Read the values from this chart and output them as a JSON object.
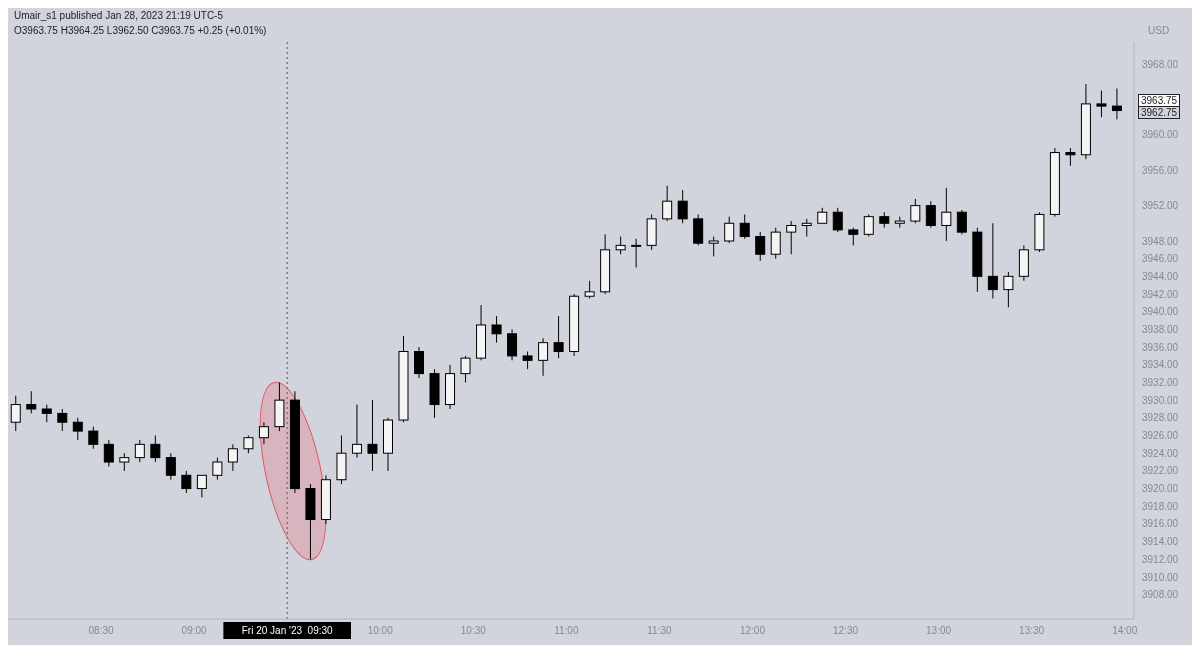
{
  "chart_data": {
    "type": "candlestick",
    "ylabel": "USD",
    "annotations": [
      "Umair_s1 published Jan 28, 2023 21:19 UTC-5",
      "O3963.75 H3964.25 L3962.50 C3963.75 +0.25 (+0.01%)",
      "3963.75",
      "3962.75"
    ],
    "x": [
      8.0417,
      8.125,
      8.2083,
      8.2917,
      8.375,
      8.4583,
      8.5417,
      8.625,
      8.7083,
      8.7917,
      8.875,
      8.9583,
      9.0417,
      9.125,
      9.2083,
      9.2917,
      9.375,
      9.4583,
      9.5417,
      9.625,
      9.7083,
      9.7917,
      9.875,
      9.9583,
      10.0417,
      10.125,
      10.2083,
      10.2917,
      10.375,
      10.4583,
      10.5417,
      10.625,
      10.7083,
      10.7917,
      10.875,
      10.9583,
      11.0417,
      11.125,
      11.2083,
      11.2917,
      11.375,
      11.4583,
      11.5417,
      11.625,
      11.7083,
      11.7917,
      11.875,
      11.9583,
      12.0417,
      12.125,
      12.2083,
      12.2917,
      12.375,
      12.4583,
      12.5417,
      12.625,
      12.7083,
      12.7917,
      12.875,
      12.9583,
      13.0417,
      13.125,
      13.2083,
      13.2917,
      13.375,
      13.4583,
      13.5417,
      13.625,
      13.7083,
      13.7917,
      13.875,
      13.9583
    ],
    "series": [
      {
        "color": "#000000",
        "ohlc": [
          [
            3927.5,
            3930.5,
            3926.5,
            3929.5
          ],
          [
            3929.5,
            3931,
            3928.5,
            3929
          ],
          [
            3929,
            3929.5,
            3927.5,
            3928.5
          ],
          [
            3928.5,
            3929,
            3926.5,
            3927.5
          ],
          [
            3927.5,
            3928,
            3925.5,
            3926.5
          ],
          [
            3926.5,
            3927,
            3924.5,
            3925
          ],
          [
            3925,
            3925.5,
            3922.5,
            3923
          ],
          [
            3923,
            3924,
            3922,
            3923.5
          ],
          [
            3923.5,
            3925.5,
            3923,
            3925
          ],
          [
            3925,
            3926,
            3923,
            3923.5
          ],
          [
            3923.5,
            3924,
            3921,
            3921.5
          ],
          [
            3921.5,
            3922,
            3919.5,
            3920
          ],
          [
            3920,
            3921.5,
            3919,
            3921.5
          ],
          [
            3921.5,
            3923.5,
            3921,
            3923
          ],
          [
            3923,
            3925,
            3922,
            3924.5
          ],
          [
            3924.5,
            3926,
            3924,
            3925.75
          ],
          [
            3925.75,
            3927.5,
            3925,
            3927
          ],
          [
            3927,
            3932,
            3926.5,
            3930
          ],
          [
            3930,
            3931,
            3919.5,
            3920
          ],
          [
            3920,
            3920.5,
            3912,
            3916.5
          ],
          [
            3916.5,
            3921.5,
            3916,
            3921
          ],
          [
            3921,
            3926,
            3920.5,
            3924
          ],
          [
            3924,
            3929.5,
            3923.5,
            3925
          ],
          [
            3925,
            3930,
            3922,
            3924
          ],
          [
            3924,
            3928,
            3922,
            3927.75
          ],
          [
            3927.75,
            3937.25,
            3927.5,
            3935.5
          ],
          [
            3935.5,
            3936,
            3932.5,
            3933
          ],
          [
            3933,
            3933.5,
            3928,
            3929.5
          ],
          [
            3929.5,
            3934,
            3929,
            3933
          ],
          [
            3933,
            3935,
            3932,
            3934.75
          ],
          [
            3934.75,
            3940.75,
            3934.5,
            3938.5
          ],
          [
            3938.5,
            3939.5,
            3936.5,
            3937.5
          ],
          [
            3937.5,
            3938,
            3934.5,
            3935
          ],
          [
            3935,
            3935.5,
            3933.5,
            3934.5
          ],
          [
            3934.5,
            3937,
            3932.75,
            3936.5
          ],
          [
            3936.5,
            3939.5,
            3934.75,
            3935.5
          ],
          [
            3935.5,
            3942,
            3935,
            3941.75
          ],
          [
            3941.75,
            3943.5,
            3941.5,
            3942.25
          ],
          [
            3942.25,
            3948.75,
            3942,
            3947
          ],
          [
            3947,
            3948.5,
            3946.5,
            3947.5
          ],
          [
            3947.5,
            3948.25,
            3945,
            3947.5
          ],
          [
            3947.5,
            3951,
            3947,
            3950.5
          ],
          [
            3950.5,
            3954.25,
            3950.25,
            3952.5
          ],
          [
            3952.5,
            3953.75,
            3950,
            3950.5
          ],
          [
            3950.5,
            3951,
            3947.5,
            3947.75
          ],
          [
            3947.75,
            3948.5,
            3946.25,
            3948
          ],
          [
            3948,
            3950.75,
            3947.75,
            3950
          ],
          [
            3950,
            3951,
            3948.25,
            3948.5
          ],
          [
            3948.5,
            3949,
            3945.75,
            3946.5
          ],
          [
            3946.5,
            3949.5,
            3946,
            3949
          ],
          [
            3949,
            3950.25,
            3946.5,
            3949.75
          ],
          [
            3949.75,
            3950.5,
            3948.5,
            3950
          ],
          [
            3950,
            3951.75,
            3950,
            3951.25
          ],
          [
            3951.25,
            3951.75,
            3949,
            3949.25
          ],
          [
            3949.25,
            3949.5,
            3947.5,
            3948.75
          ],
          [
            3948.75,
            3951,
            3948.5,
            3950.75
          ],
          [
            3950.75,
            3951.25,
            3949.5,
            3950
          ],
          [
            3950,
            3950.75,
            3949.5,
            3950.25
          ],
          [
            3950.25,
            3952.75,
            3950,
            3952
          ],
          [
            3952,
            3952.5,
            3949.5,
            3949.75
          ],
          [
            3949.75,
            3954,
            3948,
            3951.25
          ],
          [
            3951.25,
            3951.5,
            3948.75,
            3949
          ],
          [
            3949,
            3949.5,
            3942.25,
            3944
          ],
          [
            3944,
            3950,
            3941.5,
            3942.5
          ],
          [
            3942.5,
            3944.5,
            3940.5,
            3944
          ],
          [
            3944,
            3947.5,
            3943.5,
            3947
          ],
          [
            3947,
            3951.25,
            3946.75,
            3951
          ],
          [
            3951,
            3958.5,
            3950.75,
            3958
          ],
          [
            3958,
            3958.5,
            3956.5,
            3957.75
          ],
          [
            3957.75,
            3965.75,
            3957.25,
            3963.5
          ],
          [
            3963.5,
            3965,
            3962,
            3963.25
          ],
          [
            3963.25,
            3965.25,
            3961.75,
            3962.75
          ]
        ]
      }
    ],
    "xlim": [
      8.0,
      14.05
    ],
    "xticks": [
      {
        "value": 8.5,
        "label": "08:30"
      },
      {
        "value": 9,
        "label": "09:00"
      },
      {
        "value": 10,
        "label": "10:00"
      },
      {
        "value": 10.5,
        "label": "10:30"
      },
      {
        "value": 11,
        "label": "11:00"
      },
      {
        "value": 11.5,
        "label": "11:30"
      },
      {
        "value": 12,
        "label": "12:00"
      },
      {
        "value": 12.5,
        "label": "12:30"
      },
      {
        "value": 13,
        "label": "13:00"
      },
      {
        "value": 13.5,
        "label": "13:30"
      },
      {
        "value": 14,
        "label": "14:00"
      }
    ],
    "ylim": [
      3905.25,
      3970.5
    ],
    "yticks": [
      {
        "value": 3908,
        "label": "3908.00"
      },
      {
        "value": 3910,
        "label": "3910.00"
      },
      {
        "value": 3912,
        "label": "3912.00"
      },
      {
        "value": 3914,
        "label": "3914.00"
      },
      {
        "value": 3916,
        "label": "3916.00"
      },
      {
        "value": 3918,
        "label": "3918.00"
      },
      {
        "value": 3920,
        "label": "3920.00"
      },
      {
        "value": 3922,
        "label": "3922.00"
      },
      {
        "value": 3924,
        "label": "3924.00"
      },
      {
        "value": 3926,
        "label": "3926.00"
      },
      {
        "value": 3928,
        "label": "3928.00"
      },
      {
        "value": 3930,
        "label": "3930.00"
      },
      {
        "value": 3932,
        "label": "3932.00"
      },
      {
        "value": 3934,
        "label": "3934.00"
      },
      {
        "value": 3936,
        "label": "3936.00"
      },
      {
        "value": 3938,
        "label": "3938.00"
      },
      {
        "value": 3940,
        "label": "3940.00"
      },
      {
        "value": 3942,
        "label": "3942.00"
      },
      {
        "value": 3944,
        "label": "3944.00"
      },
      {
        "value": 3946,
        "label": "3946.00"
      },
      {
        "value": 3948,
        "label": "3948.00"
      },
      {
        "value": 3952,
        "label": "3952.00"
      },
      {
        "value": 3956,
        "label": "3956.00"
      },
      {
        "value": 3960,
        "label": "3960.00"
      },
      {
        "value": 3968,
        "label": "3968.00"
      }
    ],
    "ref_lines": [
      {
        "axis": "x",
        "value": 9.5,
        "label": "Fri 20 Jan '23  09:30",
        "color": "#555555",
        "line_style": "dotted"
      }
    ],
    "grid": false
  }
}
